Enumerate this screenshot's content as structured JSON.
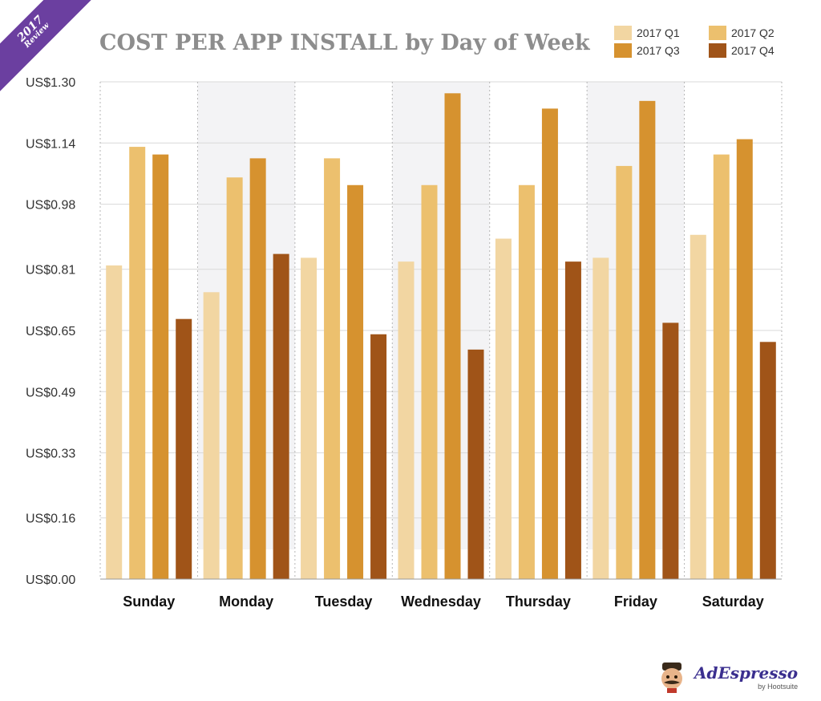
{
  "badge": {
    "year": "2017",
    "label": "Review"
  },
  "branding": {
    "name": "AdEspresso",
    "sub": "by Hootsuite"
  },
  "chart_data": {
    "type": "bar",
    "title": "COST PER APP INSTALL by Day of Week",
    "xlabel": "",
    "ylabel": "",
    "ylim": [
      0,
      1.3
    ],
    "yticks": [
      0,
      0.16,
      0.33,
      0.49,
      0.65,
      0.81,
      0.98,
      1.14,
      1.3
    ],
    "ytick_labels": [
      "US$0.00",
      "US$0.16",
      "US$0.33",
      "US$0.49",
      "US$0.65",
      "US$0.81",
      "US$0.98",
      "US$1.14",
      "US$1.30"
    ],
    "categories": [
      "Sunday",
      "Monday",
      "Tuesday",
      "Wednesday",
      "Thursday",
      "Friday",
      "Saturday"
    ],
    "series": [
      {
        "name": "2017 Q1",
        "color": "#f2d6a2",
        "values": [
          0.82,
          0.75,
          0.84,
          0.83,
          0.89,
          0.84,
          0.9
        ]
      },
      {
        "name": "2017 Q2",
        "color": "#ecc06e",
        "values": [
          1.13,
          1.05,
          1.1,
          1.03,
          1.03,
          1.08,
          1.11
        ]
      },
      {
        "name": "2017 Q3",
        "color": "#d6922f",
        "values": [
          1.11,
          1.1,
          1.03,
          1.27,
          1.23,
          1.25,
          1.15
        ]
      },
      {
        "name": "2017 Q4",
        "color": "#a05418",
        "values": [
          0.68,
          0.85,
          0.64,
          0.6,
          0.83,
          0.67,
          0.62
        ]
      }
    ],
    "grid": true,
    "legend_position": "top-right",
    "shaded_categories": [
      "Monday",
      "Wednesday",
      "Friday"
    ]
  }
}
